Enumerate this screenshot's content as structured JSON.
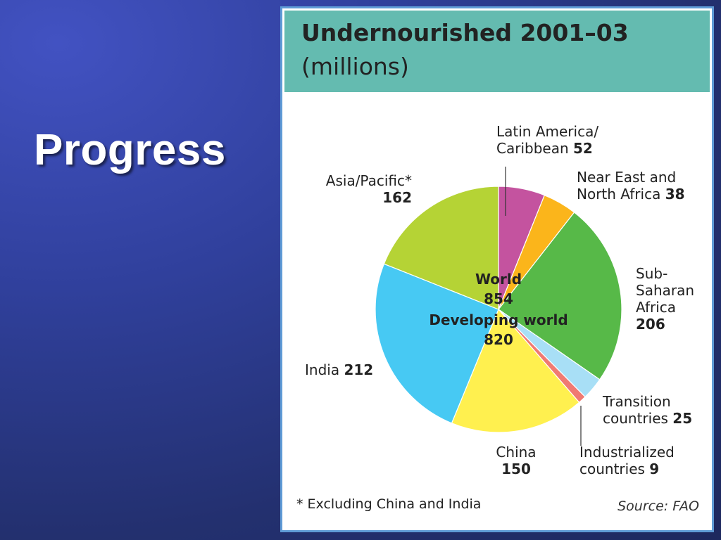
{
  "slide": {
    "title": "Progress"
  },
  "figure": {
    "title": "Undernourished 2001–03",
    "subtitle": "(millions)",
    "footnote": "* Excluding China and India",
    "source": "Source: FAO"
  },
  "chart_data": {
    "type": "pie",
    "title": "Undernourished 2001–03",
    "subtitle": "(millions)",
    "center": {
      "world_label": "World",
      "world_value": "854",
      "developing_label": "Developing world",
      "developing_value": "820"
    },
    "slices": [
      {
        "label": "Latin America/ Caribbean",
        "label_lines": [
          "Latin America/",
          "Caribbean"
        ],
        "value": 52,
        "color": "#c4539f"
      },
      {
        "label": "Near East and North Africa",
        "label_lines": [
          "Near East and",
          "North Africa"
        ],
        "value": 38,
        "color": "#fbb51b"
      },
      {
        "label": "Sub-Saharan Africa",
        "label_lines": [
          "Sub-",
          "Saharan",
          "Africa"
        ],
        "value": 206,
        "color": "#57b948"
      },
      {
        "label": "Transition countries",
        "label_lines": [
          "Transition",
          "countries"
        ],
        "value": 25,
        "color": "#a8dff6"
      },
      {
        "label": "Industrialized countries",
        "label_lines": [
          "Industrialized",
          "countries"
        ],
        "value": 9,
        "color": "#f07a72"
      },
      {
        "label": "China",
        "label_lines": [
          "China"
        ],
        "value": 150,
        "color": "#fff04f"
      },
      {
        "label": "India",
        "label_lines": [
          "India"
        ],
        "value": 212,
        "color": "#47c9f3"
      },
      {
        "label": "Asia/Pacific*",
        "label_lines": [
          "Asia/Pacific*"
        ],
        "value": 162,
        "color": "#b5d335"
      }
    ],
    "legend": "none"
  }
}
